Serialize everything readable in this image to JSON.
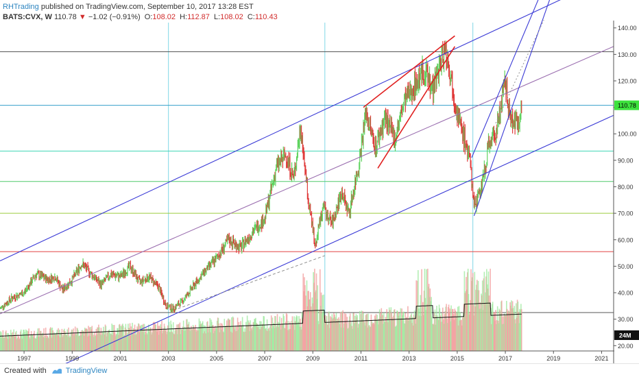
{
  "header": {
    "publisher": "RHTrading",
    "published_text": "published on TradingView.com, September 10, 2017 13:28 EST",
    "symbol": "BATS:CVX, W",
    "last": "110.78",
    "change": "−1.02 (−0.91%)",
    "o_label": "O:",
    "o_val": "108.02",
    "h_label": "H:",
    "h_val": "112.87",
    "l_label": "L:",
    "l_val": "108.02",
    "c_label": "C:",
    "c_val": "110.43"
  },
  "footer": {
    "created_with": "Created with",
    "brand": "TradingView"
  },
  "price_label": "110.78",
  "volume_label": "24M",
  "colors": {
    "up": "#5fd35f",
    "down": "#e03a3a",
    "channel": "#3b3bd6",
    "red_wedge": "#e02020",
    "midline": "#9b6fb0",
    "price_tag": "#3de23d",
    "hline_cyan": "#34a0c9",
    "hline_teal": "#3ed6b4",
    "hline_green": "#4fc96a",
    "hline_olive": "#9ccc3c",
    "hline_red": "#e04040",
    "hline_gray": "#555555"
  },
  "chart_data": {
    "type": "line",
    "title": "",
    "xlabel": "",
    "ylabel": "",
    "x_ticks": [
      "1997",
      "1999",
      "2001",
      "2003",
      "2005",
      "2007",
      "2009",
      "2011",
      "2013",
      "2015",
      "2017",
      "2019",
      "2021"
    ],
    "y_ticks": [
      "20.00",
      "30.00",
      "40.00",
      "50.00",
      "60.00",
      "70.00",
      "80.00",
      "90.00",
      "100.00",
      "110.00",
      "120.00",
      "130.00",
      "140.00"
    ],
    "ylim": [
      18,
      142
    ],
    "xlim": [
      1996.0,
      2021.5
    ],
    "price_key_points": [
      [
        1996.0,
        34
      ],
      [
        1996.5,
        38
      ],
      [
        1997.0,
        40
      ],
      [
        1997.5,
        47
      ],
      [
        1998.0,
        45
      ],
      [
        1998.3,
        46
      ],
      [
        1998.6,
        41
      ],
      [
        1999.0,
        45
      ],
      [
        1999.4,
        51
      ],
      [
        1999.8,
        47
      ],
      [
        2000.2,
        43
      ],
      [
        2000.6,
        47
      ],
      [
        2001.0,
        46
      ],
      [
        2001.4,
        50
      ],
      [
        2001.8,
        44
      ],
      [
        2002.2,
        46
      ],
      [
        2002.6,
        42
      ],
      [
        2002.9,
        35
      ],
      [
        2003.2,
        34
      ],
      [
        2003.6,
        37
      ],
      [
        2004.0,
        42
      ],
      [
        2004.5,
        48
      ],
      [
        2005.0,
        53
      ],
      [
        2005.5,
        60
      ],
      [
        2006.0,
        57
      ],
      [
        2006.5,
        63
      ],
      [
        2007.0,
        68
      ],
      [
        2007.5,
        88
      ],
      [
        2007.9,
        92
      ],
      [
        2008.2,
        83
      ],
      [
        2008.5,
        103
      ],
      [
        2008.8,
        75
      ],
      [
        2009.1,
        58
      ],
      [
        2009.4,
        72
      ],
      [
        2009.8,
        66
      ],
      [
        2010.2,
        78
      ],
      [
        2010.5,
        70
      ],
      [
        2010.9,
        88
      ],
      [
        2011.2,
        108
      ],
      [
        2011.6,
        95
      ],
      [
        2012.0,
        106
      ],
      [
        2012.4,
        98
      ],
      [
        2012.8,
        112
      ],
      [
        2013.2,
        118
      ],
      [
        2013.6,
        124
      ],
      [
        2014.0,
        117
      ],
      [
        2014.3,
        127
      ],
      [
        2014.5,
        133
      ],
      [
        2014.8,
        118
      ],
      [
        2015.1,
        104
      ],
      [
        2015.5,
        92
      ],
      [
        2015.7,
        72
      ],
      [
        2016.0,
        80
      ],
      [
        2016.3,
        95
      ],
      [
        2016.6,
        100
      ],
      [
        2016.9,
        115
      ],
      [
        2017.0,
        119
      ],
      [
        2017.2,
        106
      ],
      [
        2017.5,
        104
      ],
      [
        2017.69,
        110.78
      ]
    ],
    "volume_range_millions": [
      0,
      60
    ],
    "last_volume": "24M",
    "horizontal_levels": [
      131.0,
      110.78,
      93.5,
      82.0,
      70.0,
      55.5,
      32.5
    ],
    "trendlines": [
      {
        "name": "upper-channel",
        "from": [
          1996.0,
          52
        ],
        "to": [
          2021.5,
          160
        ]
      },
      {
        "name": "mid-channel",
        "from": [
          1996.0,
          32
        ],
        "to": [
          2021.5,
          133
        ]
      },
      {
        "name": "lower-channel",
        "from": [
          1996.0,
          2
        ],
        "to": [
          2021.5,
          107
        ]
      },
      {
        "name": "wedge-top",
        "from": [
          2011.1,
          110
        ],
        "to": [
          2014.9,
          137
        ]
      },
      {
        "name": "wedge-bottom",
        "from": [
          2011.7,
          87
        ],
        "to": [
          2014.9,
          133
        ]
      },
      {
        "name": "steep-channel-upper",
        "from": [
          2015.6,
          91
        ],
        "to": [
          2018.8,
          160
        ]
      },
      {
        "name": "steep-channel-lower",
        "from": [
          2015.7,
          69
        ],
        "to": [
          2019.2,
          160
        ]
      },
      {
        "name": "steep-dotted",
        "from": [
          2016.6,
          104
        ],
        "to": [
          2018.6,
          143
        ]
      }
    ]
  }
}
